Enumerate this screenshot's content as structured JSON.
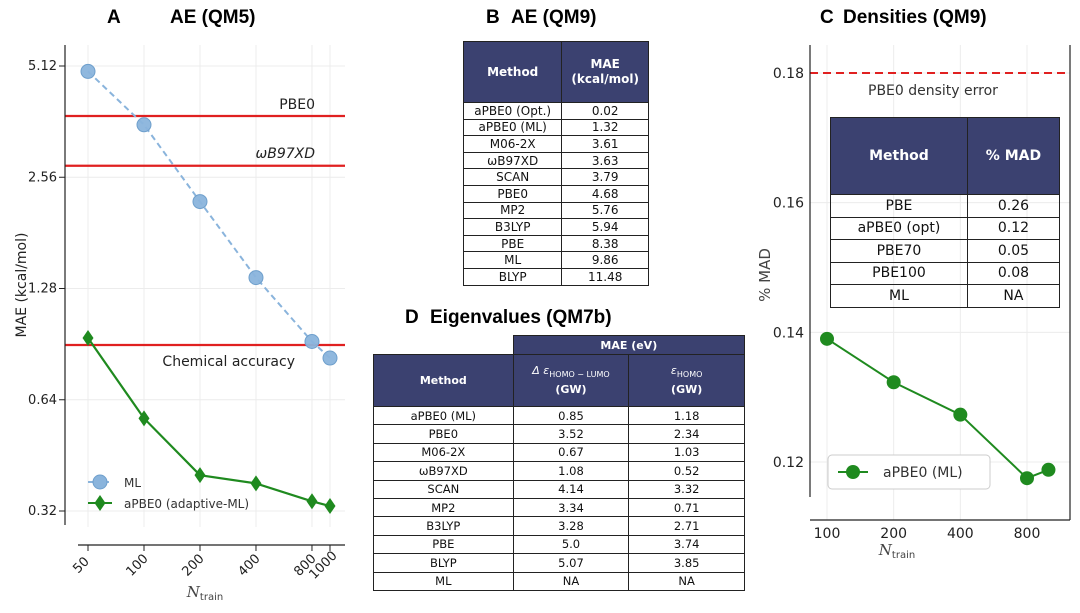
{
  "chart_data": [
    {
      "type": "line",
      "panel": "A",
      "title": "AE (QM5)",
      "xlabel": "N_train",
      "ylabel": "MAE (kcal/mol)",
      "log_x": true,
      "log_y": true,
      "x_ticks": [
        "50",
        "100",
        "200",
        "400",
        "800",
        "1000"
      ],
      "y_ticks": [
        "0.32",
        "0.64",
        "1.28",
        "2.56",
        "5.12"
      ],
      "series": [
        {
          "name": "ML",
          "color": "#8ab4dc",
          "x": [
            50,
            100,
            200,
            400,
            800,
            1000
          ],
          "y": [
            4.95,
            3.55,
            2.2,
            1.37,
            0.92,
            0.83
          ]
        },
        {
          "name": "aPBE0 (adaptive-ML)",
          "color": "#1f8a1f",
          "x": [
            50,
            100,
            200,
            400,
            800,
            1000
          ],
          "y": [
            0.94,
            0.57,
            0.4,
            0.38,
            0.34,
            0.33
          ]
        }
      ],
      "hlines": [
        {
          "label": "PBE0",
          "y": 3.75
        },
        {
          "label": "ωB97XD",
          "y": 2.75
        },
        {
          "label": "Chemical accuracy",
          "y": 0.9
        }
      ]
    },
    {
      "type": "table",
      "panel": "B",
      "title": "AE (QM9)",
      "columns": [
        "Method",
        "MAE",
        "(kcal/mol)"
      ],
      "rows": [
        [
          "aPBE0 (Opt.)",
          "0.02"
        ],
        [
          "aPBE0 (ML)",
          "1.32"
        ],
        [
          "M06-2X",
          "3.61"
        ],
        [
          "ωB97XD",
          "3.63"
        ],
        [
          "SCAN",
          "3.79"
        ],
        [
          "PBE0",
          "4.68"
        ],
        [
          "MP2",
          "5.76"
        ],
        [
          "B3LYP",
          "5.94"
        ],
        [
          "PBE",
          "8.38"
        ],
        [
          "ML",
          "9.86"
        ],
        [
          "BLYP",
          "11.48"
        ]
      ]
    },
    {
      "type": "line",
      "panel": "C",
      "title": "Densities (QM9)",
      "xlabel": "N_train",
      "ylabel": "% MAD",
      "log_x": true,
      "x_ticks": [
        "100",
        "200",
        "400",
        "800"
      ],
      "y_ticks": [
        "0.12",
        "0.14",
        "0.16",
        "0.18"
      ],
      "series": [
        {
          "name": "aPBE0 (ML)",
          "color": "#1f8a1f",
          "x": [
            100,
            200,
            400,
            800,
            1000
          ],
          "y": [
            0.139,
            0.1323,
            0.1273,
            0.1175,
            0.1188
          ]
        }
      ],
      "hlines": [
        {
          "label": "PBE0 density error",
          "y": 0.18
        }
      ],
      "inset_table": {
        "columns": [
          "Method",
          "% MAD"
        ],
        "rows": [
          [
            "PBE",
            "0.26"
          ],
          [
            "aPBE0 (opt)",
            "0.12"
          ],
          [
            "PBE70",
            "0.05"
          ],
          [
            "PBE100",
            "0.08"
          ],
          [
            "ML",
            "NA"
          ]
        ]
      }
    },
    {
      "type": "table",
      "panel": "D",
      "title": "Eigenvalues (QM7b)",
      "group_header": "MAE (eV)",
      "columns": [
        "Method",
        "Δ ε",
        "HOMO − LUMO",
        "(GW)",
        "ε",
        "HOMO",
        "(GW)"
      ],
      "rows": [
        [
          "aPBE0 (ML)",
          "0.85",
          "1.18"
        ],
        [
          "PBE0",
          "3.52",
          "2.34"
        ],
        [
          "M06-2X",
          "0.67",
          "1.03"
        ],
        [
          "ωB97XD",
          "1.08",
          "0.52"
        ],
        [
          "SCAN",
          "4.14",
          "3.32"
        ],
        [
          "MP2",
          "3.34",
          "0.71"
        ],
        [
          "B3LYP",
          "3.28",
          "2.71"
        ],
        [
          "PBE",
          "5.0",
          "3.74"
        ],
        [
          "BLYP",
          "5.07",
          "3.85"
        ],
        [
          "ML",
          "NA",
          "NA"
        ]
      ]
    }
  ],
  "panel_letters": {
    "a": "A",
    "b": "B",
    "c": "C",
    "d": "D"
  },
  "axis_text": {
    "n_italic": "N",
    "n_sub": "train"
  }
}
